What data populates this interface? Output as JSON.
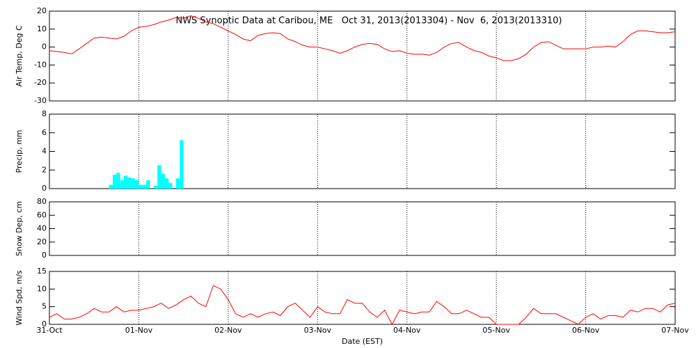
{
  "chart_data": [
    {
      "type": "line",
      "title": "NWS Synoptic Data at Caribou, ME   Oct 31, 2013(2013304) - Nov  6, 2013(2013310)",
      "ylabel": "Air Temp, Deg C",
      "color": "#ff0000",
      "xlim": [
        0,
        168
      ],
      "xticks": [
        0,
        24,
        48,
        72,
        96,
        120,
        144,
        168
      ],
      "ylim": [
        -30,
        20
      ],
      "yticks": [
        -30,
        -20,
        -10,
        0,
        10,
        20
      ],
      "x": [
        0,
        2,
        4,
        6,
        8,
        10,
        12,
        14,
        16,
        18,
        20,
        22,
        24,
        26,
        28,
        30,
        32,
        34,
        36,
        38,
        40,
        42,
        44,
        46,
        48,
        50,
        52,
        54,
        56,
        58,
        60,
        62,
        64,
        66,
        68,
        70,
        72,
        74,
        76,
        78,
        80,
        82,
        84,
        86,
        88,
        90,
        92,
        94,
        96,
        98,
        100,
        102,
        104,
        106,
        108,
        110,
        112,
        114,
        116,
        118,
        120,
        122,
        124,
        126,
        128,
        130,
        132,
        134,
        136,
        138,
        140,
        142,
        144,
        146,
        148,
        150,
        152,
        154,
        156,
        158,
        160,
        162,
        164,
        166,
        168
      ],
      "values": [
        -2,
        -2.5,
        -3,
        -3.8,
        -1,
        2,
        5,
        5.5,
        5,
        4.5,
        6,
        9,
        11,
        11.5,
        12.5,
        14,
        15,
        16.5,
        16,
        17.4,
        16,
        14,
        13,
        11,
        9,
        7,
        4.5,
        3.5,
        6.5,
        7.5,
        8,
        7.5,
        4.5,
        3,
        1,
        0,
        0,
        -1,
        -2,
        -3.5,
        -2,
        0,
        1.5,
        2,
        1.5,
        -1,
        -2.5,
        -2,
        -3.5,
        -4,
        -4,
        -4.5,
        -3,
        0,
        2,
        2.5,
        0,
        -2,
        -3,
        -5,
        -6,
        -7.5,
        -7.5,
        -6.5,
        -4,
        0,
        2.5,
        3,
        1,
        -1,
        -1,
        -1,
        -1,
        0,
        0,
        0.5,
        0,
        3,
        7,
        9,
        9,
        8.5,
        8,
        8,
        8.5
      ]
    },
    {
      "type": "histogram",
      "ylabel": "Precip, mm",
      "color": "#00ffff",
      "xlim": [
        0,
        168
      ],
      "xticks": [
        0,
        24,
        48,
        72,
        96,
        120,
        144,
        168
      ],
      "ylim": [
        0,
        8
      ],
      "yticks": [
        0,
        2,
        4,
        6,
        8
      ],
      "bins": [
        16,
        17,
        18,
        19,
        20,
        21,
        22,
        23,
        24,
        25,
        26,
        27,
        28,
        29,
        30,
        31,
        32,
        33,
        34,
        35,
        36
      ],
      "values": [
        0.4,
        1.5,
        1.7,
        0.9,
        1.4,
        1.2,
        1.1,
        0.9,
        0.4,
        0.4,
        0.9,
        0,
        0.3,
        2.5,
        1.6,
        1.1,
        0.6,
        0,
        1.1,
        5.2
      ]
    },
    {
      "type": "line",
      "ylabel": "Snow Dep, cm",
      "color": "#ff0000",
      "xlim": [
        0,
        168
      ],
      "xticks": [
        0,
        24,
        48,
        72,
        96,
        120,
        144,
        168
      ],
      "ylim": [
        0,
        80
      ],
      "yticks": [
        0,
        20,
        40,
        60,
        80
      ],
      "x": [],
      "values": []
    },
    {
      "type": "line",
      "ylabel": "Wind Spd, m/s",
      "xlabel": "Date (EST)",
      "color": "#ff0000",
      "xlim": [
        0,
        168
      ],
      "xticks": [
        {
          "value": 0,
          "label": "31-Oct"
        },
        {
          "value": 24,
          "label": "01-Nov"
        },
        {
          "value": 48,
          "label": "02-Nov"
        },
        {
          "value": 72,
          "label": "03-Nov"
        },
        {
          "value": 96,
          "label": "04-Nov"
        },
        {
          "value": 120,
          "label": "05-Nov"
        },
        {
          "value": 144,
          "label": "06-Nov"
        },
        {
          "value": 168,
          "label": "07-Nov"
        }
      ],
      "ylim": [
        0,
        15
      ],
      "yticks": [
        0,
        5,
        10,
        15
      ],
      "x": [
        0,
        2,
        4,
        6,
        8,
        10,
        12,
        14,
        16,
        18,
        20,
        22,
        24,
        26,
        28,
        30,
        32,
        34,
        36,
        38,
        40,
        42,
        44,
        46,
        48,
        50,
        52,
        54,
        56,
        58,
        60,
        62,
        64,
        66,
        68,
        70,
        72,
        74,
        76,
        78,
        80,
        82,
        84,
        86,
        88,
        90,
        92,
        94,
        96,
        98,
        100,
        102,
        104,
        106,
        108,
        110,
        112,
        114,
        116,
        118,
        120,
        122,
        124,
        126,
        128,
        130,
        132,
        134,
        136,
        138,
        140,
        142,
        144,
        146,
        148,
        150,
        152,
        154,
        156,
        158,
        160,
        162,
        164,
        166,
        168
      ],
      "values": [
        2,
        3,
        1.5,
        1.5,
        2,
        3,
        4.5,
        3.5,
        3.5,
        5,
        3.5,
        4,
        4,
        4.5,
        5,
        6,
        4.5,
        5.5,
        7,
        8,
        6,
        5,
        11,
        10,
        7,
        3,
        2,
        3,
        2,
        3,
        3.5,
        2.5,
        5,
        6,
        4,
        2,
        5,
        3.5,
        3,
        3,
        7,
        6,
        6,
        3.5,
        2,
        4,
        0,
        4,
        3.5,
        3,
        3.5,
        3.5,
        6.5,
        5,
        3,
        3,
        4,
        3,
        2,
        2,
        0,
        0,
        0,
        0,
        2,
        4.5,
        3,
        3,
        3,
        2,
        1,
        0,
        2,
        3,
        1.5,
        2.5,
        2.5,
        2,
        4,
        3.5,
        4.5,
        4.5,
        3.5,
        5.5,
        6
      ]
    }
  ]
}
